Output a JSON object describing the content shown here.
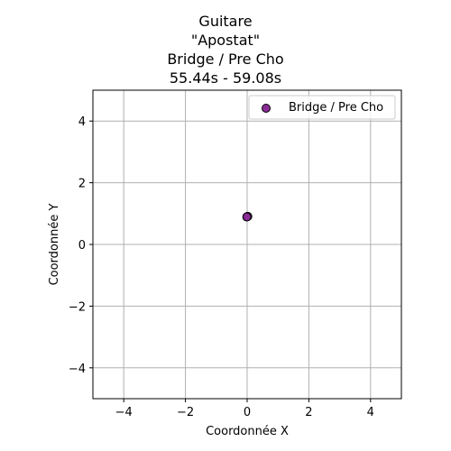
{
  "chart_data": {
    "type": "scatter",
    "title_lines": [
      "Guitare",
      "\"Apostat\"",
      "Bridge / Pre Cho",
      "55.44s - 59.08s"
    ],
    "xlabel": "Coordonnée X",
    "ylabel": "Coordonnée Y",
    "xlim": [
      -5,
      5
    ],
    "ylim": [
      -5,
      5
    ],
    "xticks": [
      -4,
      -2,
      0,
      2,
      4
    ],
    "yticks": [
      -4,
      -2,
      0,
      2,
      4
    ],
    "xtick_labels": [
      "−4",
      "−2",
      "0",
      "2",
      "4"
    ],
    "ytick_labels": [
      "−4",
      "−2",
      "0",
      "2",
      "4"
    ],
    "grid": true,
    "legend_position": "top-right",
    "series": [
      {
        "name": "Bridge / Pre Cho",
        "color": "#8b2c96",
        "edgecolor": "#000000",
        "points": [
          {
            "x": 0.0,
            "y": 0.9
          },
          {
            "x": 0.02,
            "y": 0.91
          },
          {
            "x": -0.01,
            "y": 0.89
          }
        ]
      }
    ]
  }
}
